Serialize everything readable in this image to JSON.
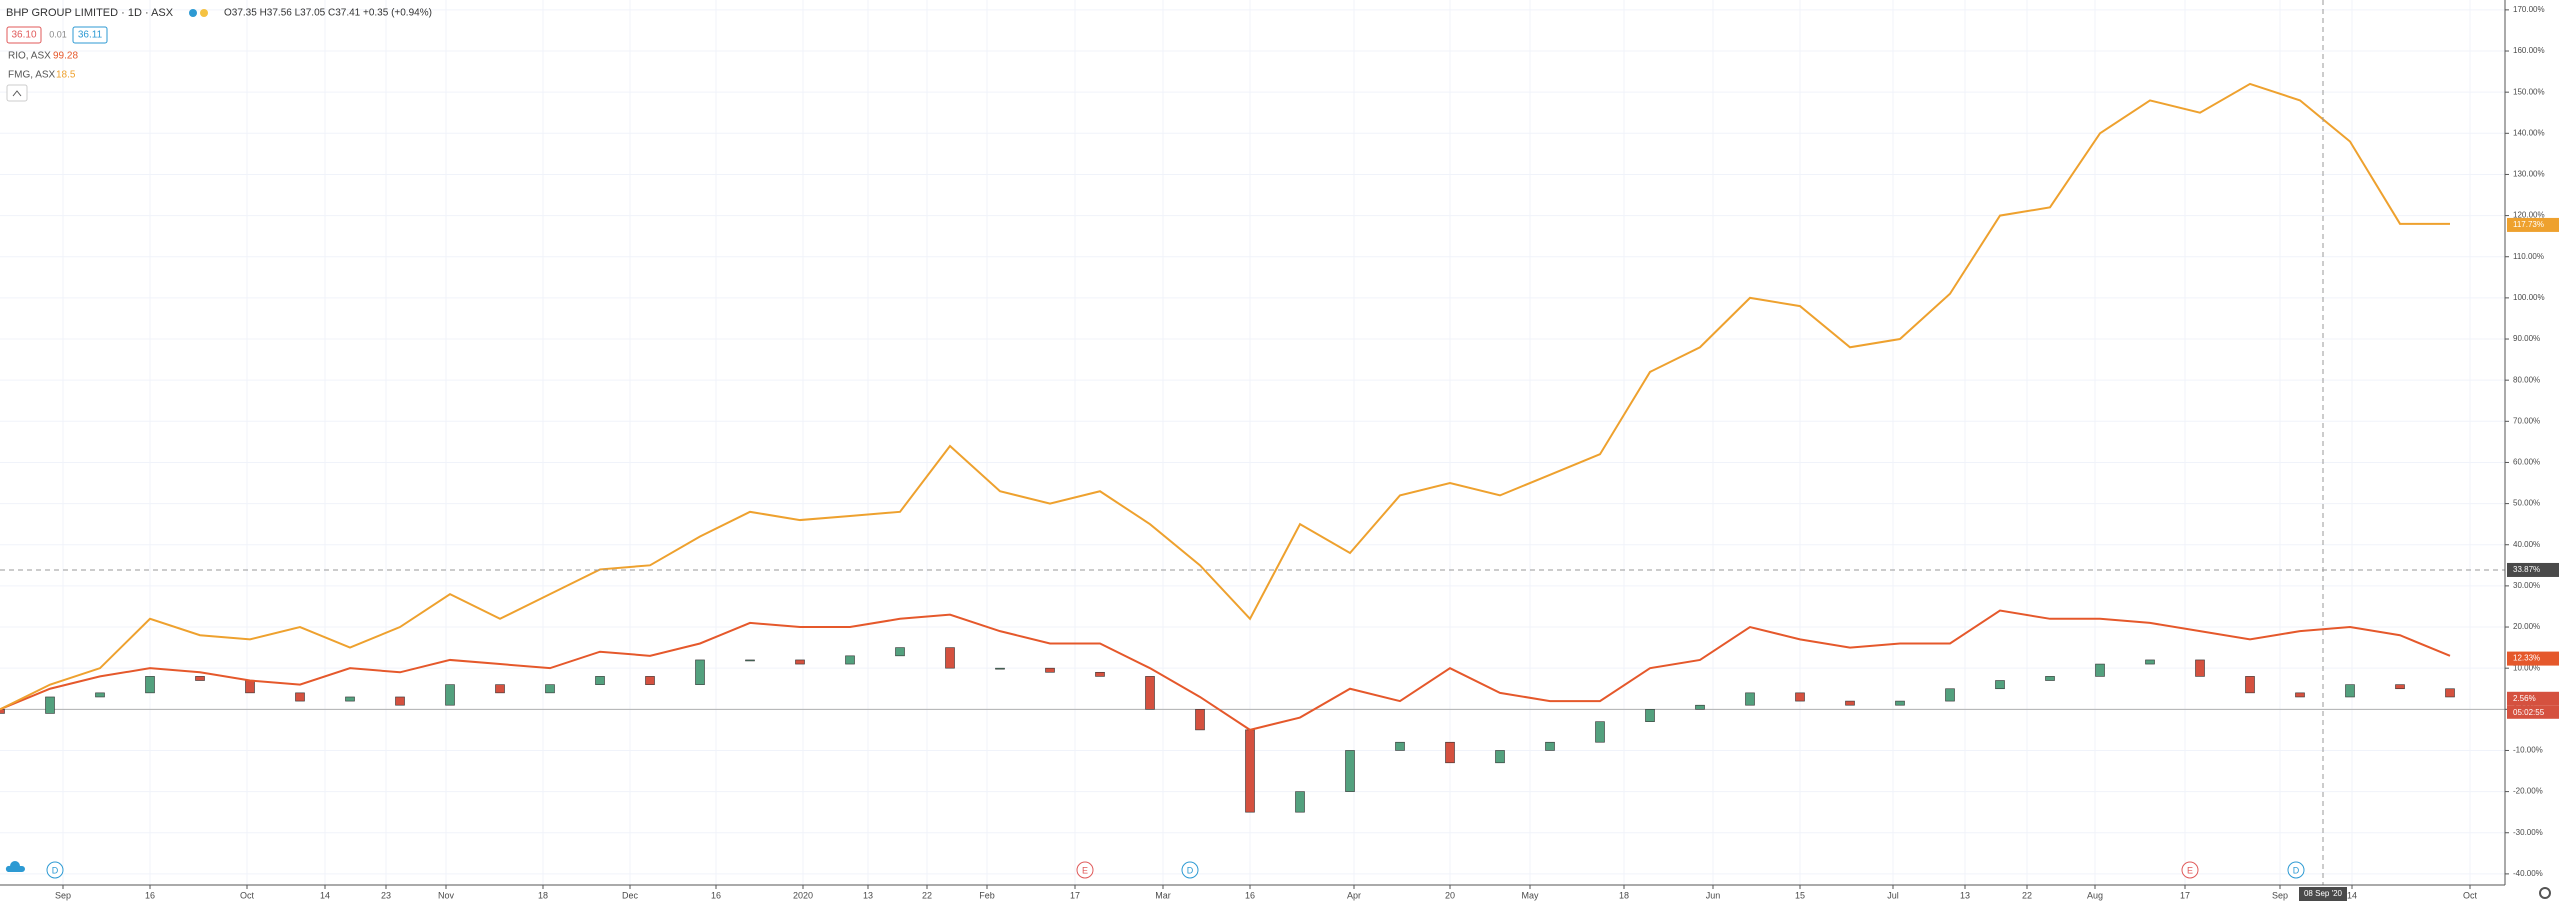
{
  "chart_data": {
    "type": "line",
    "title": "BHP GROUP LIMITED · 1D · ASX",
    "ohlc": "O37.35 H37.56 L37.05 C37.41 +0.35 (+0.94%)",
    "bid": "36.10",
    "spread": "0.01",
    "ask": "36.11",
    "countdown": "05:02:55",
    "x": [
      0,
      5,
      10,
      15,
      20,
      25,
      30,
      35,
      40,
      45,
      50,
      55,
      60,
      65,
      70,
      75,
      80,
      85,
      90,
      95,
      100,
      105,
      110,
      115,
      120,
      125,
      130,
      135,
      140,
      145,
      150,
      155,
      160,
      165,
      170,
      175,
      180,
      185,
      190,
      195,
      200,
      205,
      210,
      215,
      220,
      225,
      230,
      235,
      240,
      245
    ],
    "xlim": [
      0,
      250
    ],
    "xticks": [
      {
        "value": 6.3,
        "label": "Sep"
      },
      {
        "value": 15,
        "label": "16"
      },
      {
        "value": 24.7,
        "label": "Oct"
      },
      {
        "value": 32.5,
        "label": "14"
      },
      {
        "value": 38.6,
        "label": "23"
      },
      {
        "value": 44.6,
        "label": "Nov"
      },
      {
        "value": 54.3,
        "label": "18"
      },
      {
        "value": 63,
        "label": "Dec"
      },
      {
        "value": 71.6,
        "label": "16"
      },
      {
        "value": 80.3,
        "label": "2020"
      },
      {
        "value": 86.8,
        "label": "13"
      },
      {
        "value": 92.7,
        "label": "22"
      },
      {
        "value": 98.7,
        "label": "Feb"
      },
      {
        "value": 107.5,
        "label": "17"
      },
      {
        "value": 116.3,
        "label": "Mar"
      },
      {
        "value": 125,
        "label": "16"
      },
      {
        "value": 135.4,
        "label": "Apr"
      },
      {
        "value": 145,
        "label": "20"
      },
      {
        "value": 153,
        "label": "May"
      },
      {
        "value": 162.4,
        "label": "18"
      },
      {
        "value": 171.3,
        "label": "Jun"
      },
      {
        "value": 180,
        "label": "15"
      },
      {
        "value": 189.3,
        "label": "Jul"
      },
      {
        "value": 196.5,
        "label": "13"
      },
      {
        "value": 202.7,
        "label": "22"
      },
      {
        "value": 209.5,
        "label": "Aug"
      },
      {
        "value": 218.5,
        "label": "17"
      },
      {
        "value": 228,
        "label": "Sep"
      },
      {
        "value": 235.2,
        "label": "14"
      },
      {
        "value": 247,
        "label": "Oct"
      }
    ],
    "ylim": [
      -42.7,
      172.4
    ],
    "yticks": [
      {
        "value": -40,
        "label": "-40.00%"
      },
      {
        "value": -30,
        "label": "-30.00%"
      },
      {
        "value": -20,
        "label": "-20.00%"
      },
      {
        "value": -10,
        "label": "-10.00%"
      },
      {
        "value": 0,
        "label": "0.00%"
      },
      {
        "value": 10,
        "label": "10.00%"
      },
      {
        "value": 20,
        "label": "20.00%"
      },
      {
        "value": 30,
        "label": "30.00%"
      },
      {
        "value": 40,
        "label": "40.00%"
      },
      {
        "value": 50,
        "label": "50.00%"
      },
      {
        "value": 60,
        "label": "60.00%"
      },
      {
        "value": 70,
        "label": "70.00%"
      },
      {
        "value": 80,
        "label": "80.00%"
      },
      {
        "value": 90,
        "label": "90.00%"
      },
      {
        "value": 100,
        "label": "100.00%"
      },
      {
        "value": 110,
        "label": "110.00%"
      },
      {
        "value": 120,
        "label": "120.00%"
      },
      {
        "value": 130,
        "label": "130.00%"
      },
      {
        "value": 140,
        "label": "140.00%"
      },
      {
        "value": 150,
        "label": "150.00%"
      },
      {
        "value": 160,
        "label": "160.00%"
      },
      {
        "value": 170,
        "label": "170.00%"
      }
    ],
    "grid": true,
    "candles": {
      "up_color": "#53a17e",
      "down_color": "#d5513f",
      "open": [
        0,
        -1,
        3,
        4,
        8,
        7,
        4,
        2,
        3,
        1,
        6,
        4,
        6,
        8,
        6,
        12,
        12,
        11,
        13,
        15,
        10,
        10,
        9,
        8,
        0,
        -5,
        -25,
        -20,
        -10,
        -8,
        -13,
        -10,
        -8,
        -3,
        0,
        1,
        4,
        2,
        1,
        2,
        5,
        7,
        8,
        11,
        12,
        8,
        4,
        3,
        6,
        5
      ],
      "close": [
        -1,
        3,
        4,
        8,
        7,
        4,
        2,
        3,
        1,
        6,
        4,
        6,
        8,
        6,
        12,
        12,
        11,
        13,
        15,
        10,
        10,
        9,
        8,
        0,
        -5,
        -25,
        -20,
        -10,
        -8,
        -13,
        -10,
        -8,
        -3,
        0,
        1,
        4,
        2,
        1,
        2,
        5,
        7,
        8,
        11,
        12,
        8,
        4,
        3,
        6,
        5,
        3
      ],
      "last": {
        "value": 2.56,
        "label": "2.56%"
      }
    },
    "series": [
      {
        "name": "RIO, ASX",
        "price": 99.28,
        "color": "#e5582b",
        "values": [
          0,
          5,
          8,
          10,
          9,
          7,
          6,
          10,
          9,
          12,
          11,
          10,
          14,
          13,
          16,
          21,
          20,
          20,
          22,
          23,
          19,
          16,
          16,
          10,
          3,
          -5,
          -2,
          5,
          2,
          10,
          4,
          2,
          2,
          10,
          12,
          20,
          17,
          15,
          16,
          16,
          24,
          22,
          22,
          21,
          19,
          17,
          19,
          20,
          18,
          13
        ],
        "last": {
          "value": 12.33,
          "label": "12.33%"
        }
      },
      {
        "name": "FMG, ASX",
        "price": 18.5,
        "color": "#eea12e",
        "values": [
          0,
          6,
          10,
          22,
          18,
          17,
          20,
          15,
          20,
          28,
          22,
          28,
          34,
          35,
          42,
          48,
          46,
          47,
          48,
          64,
          53,
          50,
          53,
          45,
          35,
          22,
          45,
          38,
          52,
          55,
          52,
          57,
          62,
          82,
          88,
          100,
          98,
          88,
          90,
          101,
          120,
          122,
          140,
          148,
          145,
          152,
          148,
          138,
          118,
          118
        ],
        "last": {
          "value": 117.73,
          "label": "117.73%"
        }
      }
    ],
    "crosshair": {
      "x": 232.3,
      "x_label": "08 Sep '20",
      "y": {
        "value": 33.87,
        "label": "33.87%"
      }
    },
    "events": [
      {
        "x": 5.5,
        "label": "D",
        "color": "#2d9ad3"
      },
      {
        "x": 108.5,
        "label": "E",
        "color": "#e05a5a"
      },
      {
        "x": 119,
        "label": "D",
        "color": "#2d9ad3"
      },
      {
        "x": 219,
        "label": "E",
        "color": "#e05a5a"
      },
      {
        "x": 229.6,
        "label": "D",
        "color": "#2d9ad3"
      }
    ]
  }
}
